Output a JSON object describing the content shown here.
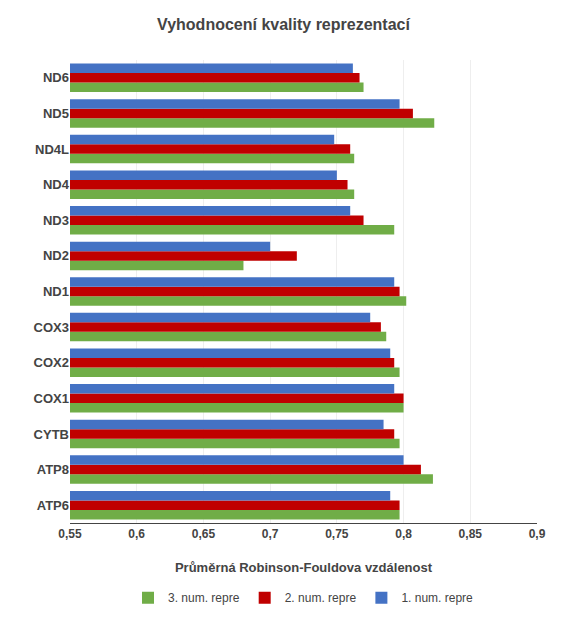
{
  "chart_data": {
    "type": "bar",
    "orientation": "horizontal",
    "title": "Vyhodnocení kvality reprezentací",
    "xlabel": "Průměrná Robinson-Fouldova vzdálenost",
    "categories": [
      "ATP6",
      "ATP8",
      "CYTB",
      "COX1",
      "COX2",
      "COX3",
      "ND1",
      "ND2",
      "ND3",
      "ND4",
      "ND4L",
      "ND5",
      "ND6"
    ],
    "series": [
      {
        "name": "3. num. repre",
        "color": "#70AD47",
        "values": [
          0.797,
          0.822,
          0.797,
          0.8,
          0.797,
          0.787,
          0.802,
          0.68,
          0.793,
          0.763,
          0.763,
          0.823,
          0.77
        ]
      },
      {
        "name": "2. num. repre",
        "color": "#C00000",
        "values": [
          0.797,
          0.813,
          0.793,
          0.8,
          0.793,
          0.783,
          0.797,
          0.72,
          0.77,
          0.758,
          0.76,
          0.807,
          0.767
        ]
      },
      {
        "name": "1. num. repre",
        "color": "#4472C4",
        "values": [
          0.79,
          0.8,
          0.785,
          0.793,
          0.79,
          0.775,
          0.793,
          0.7,
          0.76,
          0.75,
          0.748,
          0.797,
          0.762
        ]
      }
    ],
    "xlim": [
      0.55,
      0.9
    ],
    "xticks": [
      {
        "value": 0.55,
        "label": "0,55"
      },
      {
        "value": 0.6,
        "label": "0,6"
      },
      {
        "value": 0.65,
        "label": "0,65"
      },
      {
        "value": 0.7,
        "label": "0,7"
      },
      {
        "value": 0.75,
        "label": "0,75"
      },
      {
        "value": 0.8,
        "label": "0,8"
      },
      {
        "value": 0.85,
        "label": "0,85"
      },
      {
        "value": 0.9,
        "label": "0,9"
      }
    ],
    "grid": true,
    "legend": "bottom"
  }
}
